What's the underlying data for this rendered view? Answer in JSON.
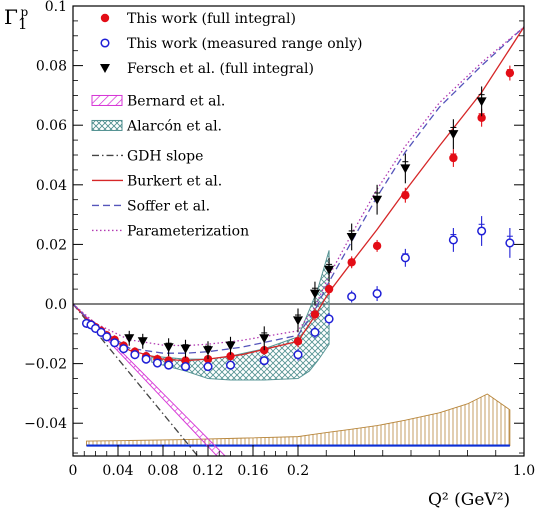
{
  "chart_data": {
    "type": "scatter",
    "xlabel": "Q² (GeV²)",
    "ylabel": "Γ₁ᵖ",
    "xlim": [
      0,
      1.0
    ],
    "ylim": [
      -0.051,
      0.1
    ],
    "x_axis_note": "piecewise: linear 0–0.2, compressed 0.2–1.0",
    "x_ticks": [
      {
        "value": 0,
        "label": "0"
      },
      {
        "value": 0.04,
        "label": "0.04"
      },
      {
        "value": 0.08,
        "label": "0.08"
      },
      {
        "value": 0.12,
        "label": "0.12"
      },
      {
        "value": 0.16,
        "label": "0.16"
      },
      {
        "value": 0.2,
        "label": "0.2"
      },
      {
        "value": 1.0,
        "label": "1.0"
      }
    ],
    "y_ticks": [
      {
        "value": 0.1,
        "label": "0.1"
      },
      {
        "value": 0.08,
        "label": "0.08"
      },
      {
        "value": 0.06,
        "label": "0.06"
      },
      {
        "value": 0.04,
        "label": "0.04"
      },
      {
        "value": 0.02,
        "label": "0.02"
      },
      {
        "value": 0.0,
        "label": "0.0"
      },
      {
        "value": -0.02,
        "label": "−0.02"
      },
      {
        "value": -0.04,
        "label": "−0.04"
      }
    ],
    "colors": {
      "full": "#e30d16",
      "measured": "#1f1fd6",
      "fersch": "#000000",
      "bernard": "#d633d6",
      "alarcon": "#4f8f8f",
      "gdh": "#444444",
      "burkert": "#d62728",
      "soffer": "#5555bb",
      "param": "#b23ab2",
      "systematic": "#b8863b",
      "baseline": "#0b2fd6"
    },
    "legend": [
      {
        "key": "full",
        "marker": "filled-circle",
        "label": "This work (full integral)"
      },
      {
        "key": "measured",
        "marker": "open-circle",
        "label": "This work (measured range only)"
      },
      {
        "key": "fersch",
        "marker": "triangle-down",
        "label": "Fersch et al. (full integral)"
      },
      {
        "key": "bernard",
        "marker": "band-hatch",
        "label": "Bernard et al."
      },
      {
        "key": "alarcon",
        "marker": "band-cross",
        "label": "Alarcón et al."
      },
      {
        "key": "gdh",
        "marker": "dashdot",
        "label": "GDH slope"
      },
      {
        "key": "burkert",
        "marker": "solid",
        "label": "Burkert et al."
      },
      {
        "key": "soffer",
        "marker": "dashed",
        "label": "Soffer et al."
      },
      {
        "key": "param",
        "marker": "dotted",
        "label": "Parameterization"
      }
    ],
    "series": [
      {
        "name": "This work (full integral)",
        "key": "full",
        "marker": "filled-circle",
        "x": [
          0.012,
          0.016,
          0.02,
          0.025,
          0.03,
          0.037,
          0.045,
          0.055,
          0.065,
          0.075,
          0.085,
          0.1,
          0.12,
          0.14,
          0.17,
          0.2,
          0.26,
          0.31,
          0.39,
          0.48,
          0.58,
          0.75,
          0.85,
          0.95
        ],
        "y": [
          -0.0065,
          -0.0068,
          -0.0078,
          -0.009,
          -0.0105,
          -0.012,
          -0.014,
          -0.016,
          -0.0175,
          -0.0185,
          -0.019,
          -0.019,
          -0.0185,
          -0.0175,
          -0.0155,
          -0.0125,
          -0.0035,
          0.005,
          0.014,
          0.0195,
          0.0365,
          0.049,
          0.0625,
          0.0775
        ],
        "err": [
          0.0015,
          0.0015,
          0.0015,
          0.0015,
          0.0015,
          0.0015,
          0.0015,
          0.0015,
          0.0015,
          0.0015,
          0.0015,
          0.0015,
          0.0015,
          0.0015,
          0.0015,
          0.002,
          0.002,
          0.002,
          0.002,
          0.002,
          0.0025,
          0.003,
          0.003,
          0.0025
        ]
      },
      {
        "name": "This work (measured range only)",
        "key": "measured",
        "marker": "open-circle",
        "x": [
          0.012,
          0.016,
          0.02,
          0.025,
          0.03,
          0.037,
          0.045,
          0.055,
          0.065,
          0.075,
          0.085,
          0.1,
          0.12,
          0.14,
          0.17,
          0.2,
          0.26,
          0.31,
          0.39,
          0.48,
          0.58,
          0.75,
          0.85,
          0.95
        ],
        "y": [
          -0.0065,
          -0.007,
          -0.0082,
          -0.0095,
          -0.011,
          -0.013,
          -0.015,
          -0.017,
          -0.0185,
          -0.0198,
          -0.0205,
          -0.021,
          -0.021,
          -0.0205,
          -0.019,
          -0.017,
          -0.0095,
          -0.005,
          0.0025,
          0.0035,
          0.0155,
          0.0215,
          0.0245,
          0.0205
        ],
        "err": [
          0.0015,
          0.0015,
          0.0015,
          0.0015,
          0.0015,
          0.0015,
          0.0015,
          0.0015,
          0.0015,
          0.0015,
          0.0015,
          0.0015,
          0.0015,
          0.0015,
          0.0015,
          0.002,
          0.002,
          0.002,
          0.002,
          0.0025,
          0.003,
          0.004,
          0.005,
          0.005
        ]
      },
      {
        "name": "Fersch et al. (full integral)",
        "key": "fersch",
        "marker": "triangle-down",
        "x": [
          0.05,
          0.062,
          0.085,
          0.1,
          0.12,
          0.14,
          0.17,
          0.2,
          0.26,
          0.31,
          0.39,
          0.48,
          0.58,
          0.75,
          0.85
        ],
        "y": [
          -0.0115,
          -0.0125,
          -0.0145,
          -0.015,
          -0.0155,
          -0.014,
          -0.0115,
          -0.0055,
          0.0035,
          0.0115,
          0.0225,
          0.035,
          0.0455,
          0.057,
          0.068
        ],
        "err": [
          0.0025,
          0.0025,
          0.003,
          0.003,
          0.003,
          0.003,
          0.004,
          0.004,
          0.004,
          0.004,
          0.0045,
          0.005,
          0.005,
          0.005,
          0.005
        ]
      }
    ],
    "curves": [
      {
        "name": "GDH slope",
        "key": "gdh",
        "style": "dashdot",
        "x": [
          0,
          0.02,
          0.04,
          0.06,
          0.08,
          0.1,
          0.113
        ],
        "y": [
          0,
          -0.0092,
          -0.0184,
          -0.0276,
          -0.0368,
          -0.046,
          -0.052
        ]
      },
      {
        "name": "Burkert et al.",
        "key": "burkert",
        "style": "solid",
        "x": [
          0,
          0.02,
          0.05,
          0.08,
          0.1,
          0.12,
          0.15,
          0.2,
          0.26,
          0.31,
          0.39,
          0.48,
          0.58,
          0.7,
          0.85,
          1.0
        ],
        "y": [
          0,
          -0.008,
          -0.0155,
          -0.0185,
          -0.019,
          -0.0185,
          -0.017,
          -0.0125,
          -0.004,
          0.004,
          0.014,
          0.025,
          0.038,
          0.053,
          0.071,
          0.093
        ]
      },
      {
        "name": "Soffer et al.",
        "key": "soffer",
        "style": "dashed",
        "x": [
          0,
          0.02,
          0.05,
          0.08,
          0.1,
          0.12,
          0.15,
          0.2,
          0.26,
          0.31,
          0.39,
          0.48,
          0.58,
          0.7,
          0.85,
          1.0
        ],
        "y": [
          0,
          -0.0075,
          -0.0148,
          -0.0165,
          -0.0165,
          -0.016,
          -0.0145,
          -0.0105,
          -0.002,
          0.0075,
          0.021,
          0.036,
          0.051,
          0.066,
          0.08,
          0.093
        ]
      },
      {
        "name": "Parameterization",
        "key": "param",
        "style": "dotted",
        "x": [
          0,
          0.02,
          0.05,
          0.08,
          0.1,
          0.12,
          0.15,
          0.2,
          0.26,
          0.31,
          0.39,
          0.48,
          0.58,
          0.7,
          0.85,
          1.0
        ],
        "y": [
          0,
          -0.0065,
          -0.012,
          -0.0138,
          -0.014,
          -0.0135,
          -0.0122,
          -0.009,
          -0.001,
          0.0095,
          0.0235,
          0.0385,
          0.053,
          0.0675,
          0.081,
          0.093
        ]
      }
    ],
    "bands": [
      {
        "name": "Bernard et al.",
        "key": "bernard",
        "pattern": "hatch",
        "x": [
          0,
          0.02,
          0.04,
          0.06,
          0.08,
          0.1,
          0.12,
          0.14,
          0.146
        ],
        "y_low": [
          -0.0002,
          -0.0078,
          -0.0158,
          -0.0238,
          -0.0318,
          -0.0398,
          -0.0478,
          -0.0558,
          -0.0582
        ],
        "y_high": [
          0,
          -0.0072,
          -0.0148,
          -0.0224,
          -0.03,
          -0.0376,
          -0.0452,
          -0.0528,
          -0.0551
        ]
      },
      {
        "name": "Alarcón et al.",
        "key": "alarcon",
        "pattern": "cross",
        "x": [
          0.07,
          0.1,
          0.12,
          0.14,
          0.17,
          0.2,
          0.24,
          0.27,
          0.31
        ],
        "y_low": [
          -0.0195,
          -0.0225,
          -0.025,
          -0.0255,
          -0.0255,
          -0.025,
          -0.0225,
          -0.019,
          -0.0135
        ],
        "y_high": [
          -0.0175,
          -0.0185,
          -0.0185,
          -0.0175,
          -0.015,
          -0.011,
          -0.002,
          0.005,
          0.018
        ]
      }
    ],
    "systematic_band": {
      "name": "systematic",
      "key": "systematic",
      "base": -0.0475,
      "x": [
        0.012,
        0.05,
        0.1,
        0.15,
        0.2,
        0.25,
        0.31,
        0.39,
        0.48,
        0.58,
        0.7,
        0.8,
        0.87,
        0.95
      ],
      "y": [
        -0.046,
        -0.0458,
        -0.0455,
        -0.045,
        -0.0445,
        -0.0438,
        -0.043,
        -0.042,
        -0.0408,
        -0.039,
        -0.0365,
        -0.0335,
        -0.0302,
        -0.0355
      ]
    }
  }
}
